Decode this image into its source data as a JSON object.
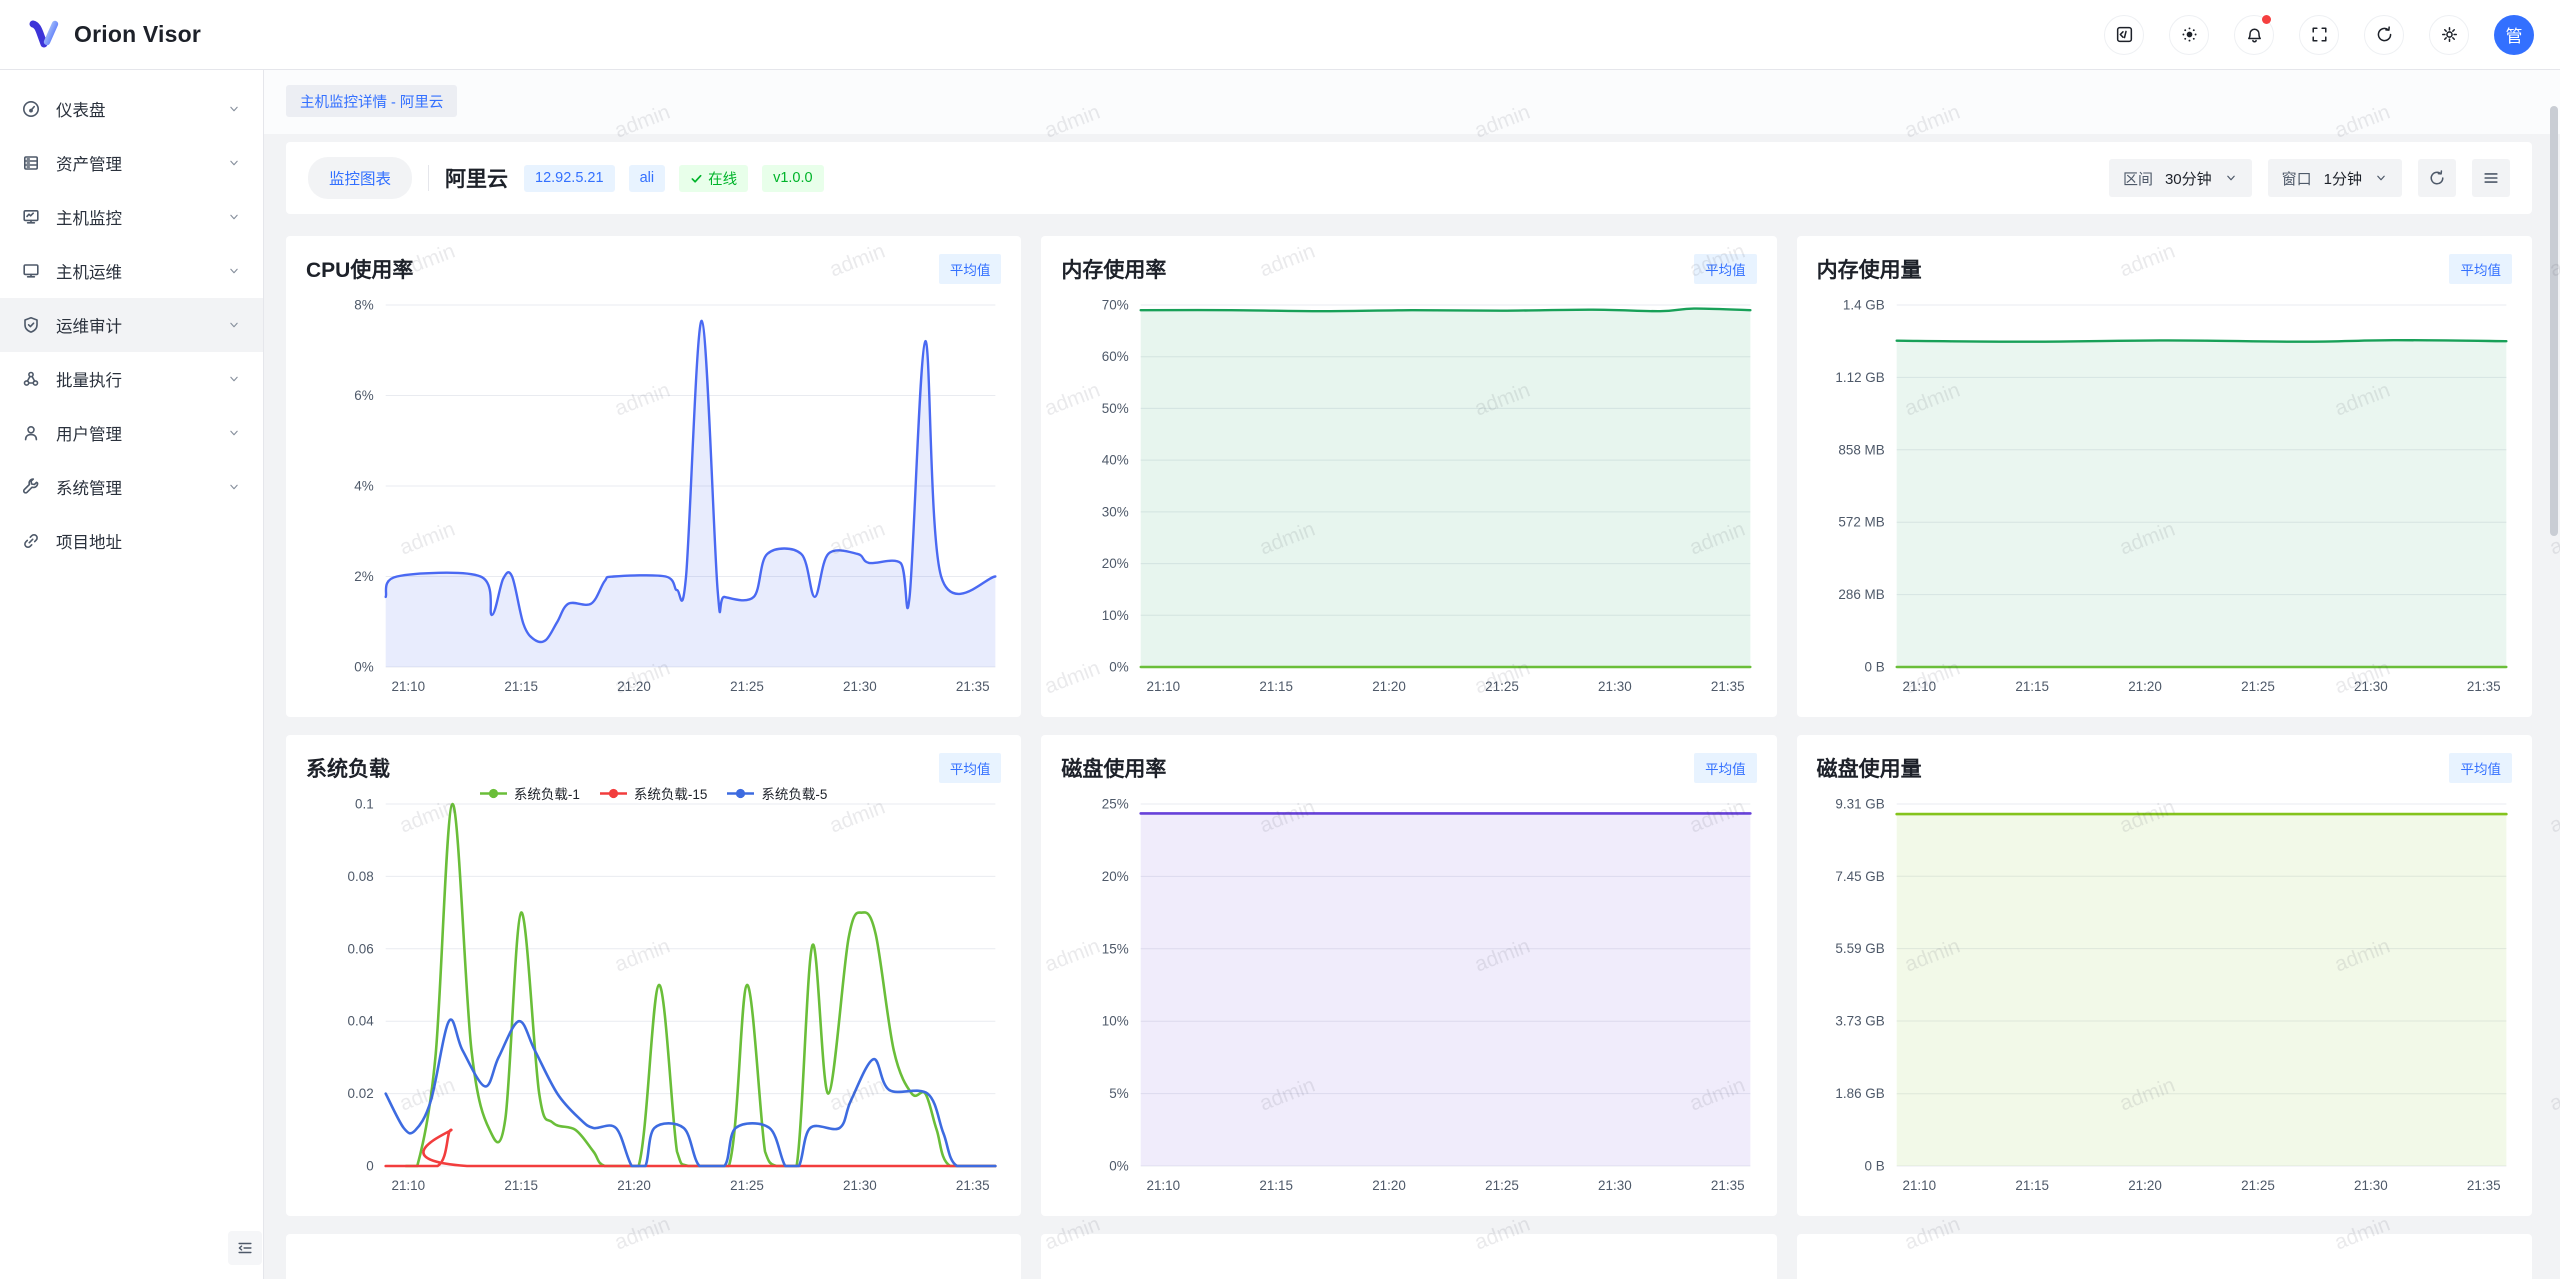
{
  "theme": {
    "accent_blue": "#3370ff",
    "green": "#00b42a",
    "bg": "#f2f3f5",
    "tag_blue_bg": "#e8f3ff",
    "tag_green_bg": "#e8ffea",
    "badge_bg": "#e8f3ff",
    "card_bg": "#ffffff"
  },
  "watermark": "admin",
  "header": {
    "app_title": "Orion Visor",
    "avatar_text": "管",
    "actions": [
      {
        "icon": "code",
        "badge": false
      },
      {
        "icon": "theme",
        "badge": false
      },
      {
        "icon": "notifications",
        "badge": true
      },
      {
        "icon": "fullscreen",
        "badge": false
      },
      {
        "icon": "refresh",
        "badge": false
      },
      {
        "icon": "settings",
        "badge": false
      }
    ]
  },
  "sidebar": {
    "items": [
      {
        "id": "dashboard",
        "label": "仪表盘",
        "icon": "dashboard",
        "active": false,
        "chevron": true
      },
      {
        "id": "assets",
        "label": "资产管理",
        "icon": "assets",
        "active": false,
        "chevron": true
      },
      {
        "id": "host-monitor",
        "label": "主机监控",
        "icon": "host-monitor",
        "active": false,
        "chevron": true
      },
      {
        "id": "host-ops",
        "label": "主机运维",
        "icon": "host-ops",
        "active": false,
        "chevron": true
      },
      {
        "id": "ops-audit",
        "label": "运维审计",
        "icon": "audit",
        "active": true,
        "chevron": true
      },
      {
        "id": "batch-exec",
        "label": "批量执行",
        "icon": "batch",
        "active": false,
        "chevron": true
      },
      {
        "id": "user-mgmt",
        "label": "用户管理",
        "icon": "users",
        "active": false,
        "chevron": true
      },
      {
        "id": "system-mgmt",
        "label": "系统管理",
        "icon": "system",
        "active": false,
        "chevron": true
      },
      {
        "id": "project-link",
        "label": "项目地址",
        "icon": "link",
        "active": false,
        "chevron": false
      }
    ]
  },
  "breadcrumb": {
    "label": "主机监控详情 - 阿里云"
  },
  "toolbar": {
    "view_button": "监控图表",
    "host_name": "阿里云",
    "tags": [
      {
        "text": "12.92.5.21",
        "color": "blue",
        "check": false
      },
      {
        "text": "ali",
        "color": "blue",
        "check": false
      },
      {
        "text": "在线",
        "color": "green",
        "check": true
      },
      {
        "text": "v1.0.0",
        "color": "green",
        "check": false
      }
    ],
    "range_label": "区间",
    "range_value": "30分钟",
    "window_label": "窗口",
    "window_value": "1分钟"
  },
  "chart_data": [
    {
      "id": "cpu-usage",
      "type": "line",
      "title": "CPU使用率",
      "badge": "平均值",
      "x_ticks": [
        "21:10",
        "21:15",
        "21:20",
        "21:25",
        "21:30",
        "21:35"
      ],
      "x_range": 27,
      "y_ticks": [
        {
          "label": "8%",
          "value": 8
        },
        {
          "label": "6%",
          "value": 6
        },
        {
          "label": "4%",
          "value": 4
        },
        {
          "label": "2%",
          "value": 2
        },
        {
          "label": "0%",
          "value": 0
        }
      ],
      "series": [
        {
          "name": "CPU使用率",
          "color": "#4a69f2",
          "fill": "rgba(74,105,242,0.13)",
          "width": 2.4,
          "points": [
            [
              0,
              1.55
            ],
            [
              0.5,
              2
            ],
            [
              4.2,
              2
            ],
            [
              4.7,
              1.15
            ],
            [
              5.2,
              1.95
            ],
            [
              5.6,
              2
            ],
            [
              6.1,
              0.95
            ],
            [
              6.6,
              0.6
            ],
            [
              7.1,
              0.6
            ],
            [
              7.6,
              1.0
            ],
            [
              8.1,
              1.4
            ],
            [
              9.1,
              1.4
            ],
            [
              9.7,
              1.9
            ],
            [
              10.1,
              2
            ],
            [
              12.4,
              2
            ],
            [
              12.9,
              1.7
            ],
            [
              13.3,
              2
            ],
            [
              14,
              7.65
            ],
            [
              14.7,
              1.7
            ],
            [
              15,
              1.55
            ],
            [
              16.3,
              1.55
            ],
            [
              16.9,
              2.5
            ],
            [
              18.4,
              2.5
            ],
            [
              19,
              1.55
            ],
            [
              19.6,
              2.5
            ],
            [
              20.9,
              2.5
            ],
            [
              21.4,
              2.3
            ],
            [
              22.8,
              2.3
            ],
            [
              23.2,
              1.55
            ],
            [
              23.9,
              7.2
            ],
            [
              24.6,
              2
            ],
            [
              27,
              2
            ]
          ]
        }
      ]
    },
    {
      "id": "memory-usage-percent",
      "type": "line",
      "title": "内存使用率",
      "badge": "平均值",
      "x_ticks": [
        "21:10",
        "21:15",
        "21:20",
        "21:25",
        "21:30",
        "21:35"
      ],
      "x_range": 27,
      "y_ticks": [
        {
          "label": "70%",
          "value": 70
        },
        {
          "label": "60%",
          "value": 60
        },
        {
          "label": "50%",
          "value": 50
        },
        {
          "label": "40%",
          "value": 40
        },
        {
          "label": "30%",
          "value": 30
        },
        {
          "label": "20%",
          "value": 20
        },
        {
          "label": "10%",
          "value": 10
        },
        {
          "label": "0%",
          "value": 0
        }
      ],
      "series": [
        {
          "color": "#18a058",
          "fill": "rgba(24,160,88,0.10)",
          "width": 2.4,
          "points": [
            [
              0,
              69
            ],
            [
              4,
              69
            ],
            [
              8,
              68.8
            ],
            [
              12,
              69
            ],
            [
              16,
              68.9
            ],
            [
              20,
              69.1
            ],
            [
              23,
              68.8
            ],
            [
              24.5,
              69.3
            ],
            [
              27,
              69
            ]
          ]
        },
        {
          "color": "#6abe39",
          "width": 2.4,
          "points": [
            [
              0,
              0
            ],
            [
              27,
              0
            ]
          ]
        }
      ]
    },
    {
      "id": "memory-usage-amount",
      "type": "line",
      "title": "内存使用量",
      "badge": "平均值",
      "x_ticks": [
        "21:10",
        "21:15",
        "21:20",
        "21:25",
        "21:30",
        "21:35"
      ],
      "x_range": 27,
      "y_ticks": [
        {
          "label": "1.4 GB",
          "value": 1.4
        },
        {
          "label": "1.12 GB",
          "value": 1.12
        },
        {
          "label": "858 MB",
          "value": 0.84
        },
        {
          "label": "572 MB",
          "value": 0.56
        },
        {
          "label": "286 MB",
          "value": 0.28
        },
        {
          "label": "0 B",
          "value": 0
        }
      ],
      "series": [
        {
          "color": "#18a058",
          "fill": "rgba(24,160,88,0.09)",
          "width": 2.4,
          "points": [
            [
              0,
              1.262
            ],
            [
              6,
              1.258
            ],
            [
              12,
              1.263
            ],
            [
              18,
              1.258
            ],
            [
              22,
              1.264
            ],
            [
              27,
              1.26
            ]
          ]
        },
        {
          "color": "#6abe39",
          "width": 2.4,
          "points": [
            [
              0,
              0
            ],
            [
              27,
              0
            ]
          ]
        }
      ]
    },
    {
      "id": "system-load",
      "type": "line",
      "title": "系统负载",
      "badge": "平均值",
      "show_legend": true,
      "x_ticks": [
        "21:10",
        "21:15",
        "21:20",
        "21:25",
        "21:30",
        "21:35"
      ],
      "x_range": 27,
      "y_ticks": [
        {
          "label": "0.1",
          "value": 0.1
        },
        {
          "label": "0.08",
          "value": 0.08
        },
        {
          "label": "0.06",
          "value": 0.06
        },
        {
          "label": "0.04",
          "value": 0.04
        },
        {
          "label": "0.02",
          "value": 0.02
        },
        {
          "label": "0",
          "value": 0
        }
      ],
      "series": [
        {
          "name": "系统负载-1",
          "color": "#6abe39",
          "width": 2.6,
          "points": [
            [
              0.9,
              0
            ],
            [
              1.4,
              0
            ],
            [
              2.2,
              0.03
            ],
            [
              2.96,
              0.1
            ],
            [
              3.8,
              0.032
            ],
            [
              4.6,
              0.01
            ],
            [
              5.3,
              0.013
            ],
            [
              6,
              0.07
            ],
            [
              6.8,
              0.02
            ],
            [
              7.4,
              0.012
            ],
            [
              8.4,
              0.01
            ],
            [
              9.2,
              0.004
            ],
            [
              9.7,
              0
            ],
            [
              11.2,
              0
            ],
            [
              12.1,
              0.05
            ],
            [
              12.9,
              0.004
            ],
            [
              13.4,
              0
            ],
            [
              15.2,
              0
            ],
            [
              16,
              0.05
            ],
            [
              16.8,
              0.004
            ],
            [
              17.3,
              0
            ],
            [
              18.2,
              0
            ],
            [
              18.9,
              0.061
            ],
            [
              19.6,
              0.02
            ],
            [
              20.5,
              0.063
            ],
            [
              21.1,
              0.07
            ],
            [
              21.7,
              0.064
            ],
            [
              22.5,
              0.032
            ],
            [
              23.3,
              0.02
            ],
            [
              23.9,
              0.02
            ],
            [
              24.4,
              0.01
            ],
            [
              25,
              0
            ],
            [
              27,
              0
            ]
          ]
        },
        {
          "name": "系统负载-15",
          "color": "#f23d3d",
          "width": 2.6,
          "points": [
            [
              0,
              0
            ],
            [
              2.3,
              0
            ],
            [
              2.9,
              0.01
            ],
            [
              3.6,
              0
            ],
            [
              27,
              0
            ]
          ]
        },
        {
          "name": "系统负载-5",
          "color": "#3d6be0",
          "width": 2.6,
          "points": [
            [
              0,
              0.02
            ],
            [
              0.8,
              0.0105
            ],
            [
              1.3,
              0.0098
            ],
            [
              2,
              0.018
            ],
            [
              2.8,
              0.04
            ],
            [
              3.4,
              0.032
            ],
            [
              4.4,
              0.022
            ],
            [
              5,
              0.03
            ],
            [
              5.9,
              0.04
            ],
            [
              6.6,
              0.032
            ],
            [
              7.6,
              0.02
            ],
            [
              8.6,
              0.013
            ],
            [
              9.2,
              0.0105
            ],
            [
              10.2,
              0.0105
            ],
            [
              10.9,
              0
            ],
            [
              11.5,
              0
            ],
            [
              11.9,
              0.0105
            ],
            [
              13.2,
              0.0105
            ],
            [
              13.9,
              0
            ],
            [
              15,
              0
            ],
            [
              15.5,
              0.0105
            ],
            [
              17,
              0.0105
            ],
            [
              17.7,
              0
            ],
            [
              18.3,
              0
            ],
            [
              18.8,
              0.0105
            ],
            [
              20.1,
              0.0105
            ],
            [
              20.6,
              0.018
            ],
            [
              21.6,
              0.0295
            ],
            [
              22.3,
              0.021
            ],
            [
              24,
              0.02
            ],
            [
              24.7,
              0.009
            ],
            [
              25.3,
              0
            ],
            [
              27,
              0
            ]
          ]
        }
      ]
    },
    {
      "id": "disk-usage-percent",
      "type": "line",
      "title": "磁盘使用率",
      "badge": "平均值",
      "x_ticks": [
        "21:10",
        "21:15",
        "21:20",
        "21:25",
        "21:30",
        "21:35"
      ],
      "x_range": 27,
      "y_ticks": [
        {
          "label": "25%",
          "value": 25
        },
        {
          "label": "20%",
          "value": 20
        },
        {
          "label": "15%",
          "value": 15
        },
        {
          "label": "10%",
          "value": 10
        },
        {
          "label": "5%",
          "value": 5
        },
        {
          "label": "0%",
          "value": 0
        }
      ],
      "series": [
        {
          "color": "#6741d9",
          "fill": "rgba(103,65,217,0.10)",
          "width": 2.6,
          "points": [
            [
              0,
              24.35
            ],
            [
              27,
              24.35
            ]
          ]
        }
      ]
    },
    {
      "id": "disk-usage-amount",
      "type": "line",
      "title": "磁盘使用量",
      "badge": "平均值",
      "x_ticks": [
        "21:10",
        "21:15",
        "21:20",
        "21:25",
        "21:30",
        "21:35"
      ],
      "x_range": 27,
      "y_ticks": [
        {
          "label": "9.31 GB",
          "value": 9.31
        },
        {
          "label": "7.45 GB",
          "value": 7.45
        },
        {
          "label": "5.59 GB",
          "value": 5.59
        },
        {
          "label": "3.73 GB",
          "value": 3.73
        },
        {
          "label": "1.86 GB",
          "value": 1.86
        },
        {
          "label": "0 B",
          "value": 0
        }
      ],
      "series": [
        {
          "color": "#84c31c",
          "fill": "rgba(132,195,28,0.10)",
          "width": 2.6,
          "points": [
            [
              0,
              9.05
            ],
            [
              27,
              9.05
            ]
          ]
        }
      ]
    }
  ]
}
